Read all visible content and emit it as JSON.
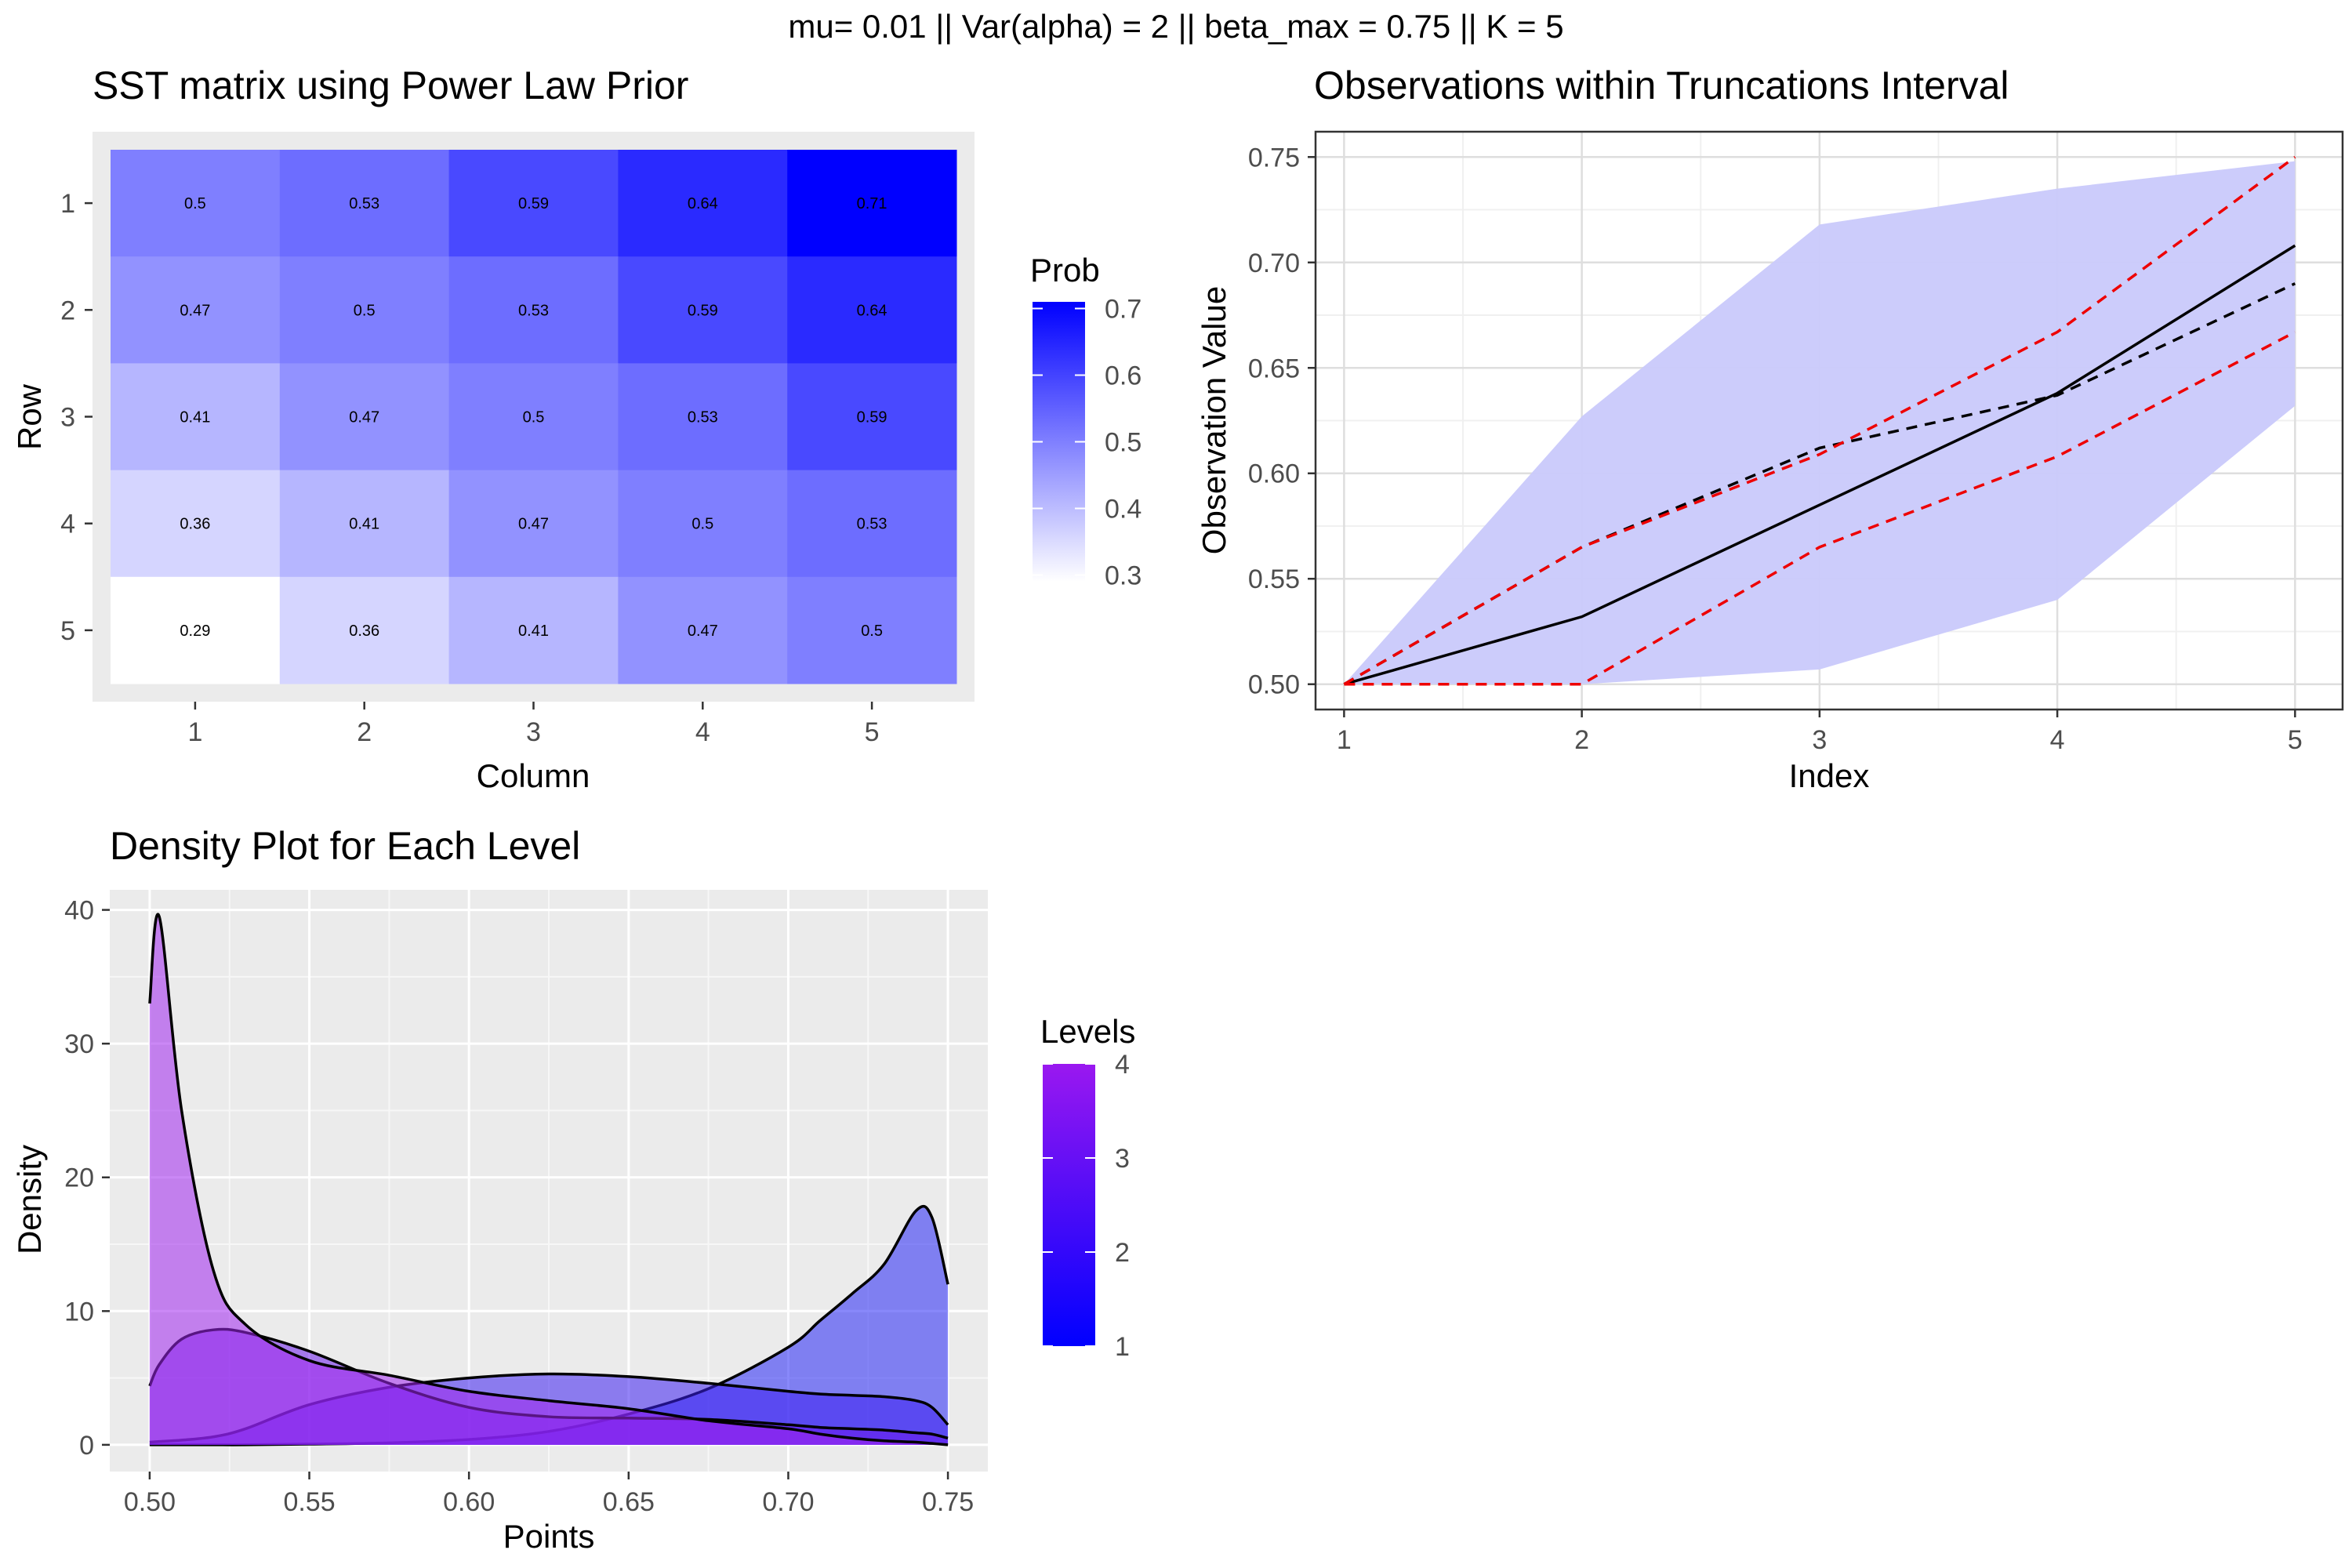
{
  "suptitle": "mu=  0.01 || Var(alpha) = 2 || beta_max = 0.75 || K = 5",
  "chart_data": [
    {
      "type": "heatmap",
      "title": "SST matrix using Power Law Prior",
      "xlabel": "Column",
      "ylabel": "Row",
      "x_ticks": [
        "1",
        "2",
        "3",
        "4",
        "5"
      ],
      "y_ticks": [
        "1",
        "2",
        "3",
        "4",
        "5"
      ],
      "matrix": [
        [
          0.5,
          0.53,
          0.59,
          0.64,
          0.71
        ],
        [
          0.47,
          0.5,
          0.53,
          0.59,
          0.64
        ],
        [
          0.41,
          0.47,
          0.5,
          0.53,
          0.59
        ],
        [
          0.36,
          0.41,
          0.47,
          0.5,
          0.53
        ],
        [
          0.29,
          0.36,
          0.41,
          0.47,
          0.5
        ]
      ],
      "legend": {
        "title": "Prob",
        "range": [
          0.29,
          0.71
        ],
        "ticks": [
          "0.3",
          "0.4",
          "0.5",
          "0.6",
          "0.7"
        ],
        "tick_values": [
          0.3,
          0.4,
          0.5,
          0.6,
          0.7
        ],
        "low_color": "#ffffff",
        "high_color": "#0000ff"
      }
    },
    {
      "type": "line",
      "title": "Observations within Truncations Interval",
      "xlabel": "Index",
      "ylabel": "Observation Value",
      "x_ticks": [
        "1",
        "2",
        "3",
        "4",
        "5"
      ],
      "y_ticks": [
        "0.50",
        "0.55",
        "0.60",
        "0.65",
        "0.70",
        "0.75"
      ],
      "xlim": [
        0.88,
        5.2
      ],
      "ylim": [
        0.488,
        0.762
      ],
      "x": [
        1,
        2,
        3,
        4,
        5
      ],
      "band": {
        "lower": [
          0.5,
          0.5,
          0.507,
          0.54,
          0.632
        ],
        "upper": [
          0.5,
          0.627,
          0.718,
          0.735,
          0.748
        ],
        "color": "#c9c9fb"
      },
      "series": [
        {
          "values": [
            0.5,
            0.532,
            0.585,
            0.638,
            0.708
          ],
          "color": "#000000",
          "dash": "solid"
        },
        {
          "values": [
            0.5,
            0.565,
            0.612,
            0.637,
            0.69
          ],
          "color": "#000000",
          "dash": "dashed"
        },
        {
          "values": [
            0.5,
            0.565,
            0.609,
            0.667,
            0.75
          ],
          "color": "#ee0000",
          "dash": "dashed"
        },
        {
          "values": [
            0.5,
            0.5,
            0.565,
            0.608,
            0.667
          ],
          "color": "#ee0000",
          "dash": "dashed"
        }
      ]
    },
    {
      "type": "area",
      "title": "Density Plot for Each Level",
      "xlabel": "Points",
      "ylabel": "Density",
      "x_ticks": [
        "0.50",
        "0.55",
        "0.60",
        "0.65",
        "0.70",
        "0.75"
      ],
      "y_ticks": [
        "0",
        "10",
        "20",
        "30",
        "40"
      ],
      "xlim": [
        0.4875,
        0.7625
      ],
      "ylim": [
        -2,
        41.5
      ],
      "x": [
        0.5,
        0.503,
        0.51,
        0.52,
        0.53,
        0.55,
        0.575,
        0.6,
        0.625,
        0.65,
        0.675,
        0.7,
        0.71,
        0.72,
        0.73,
        0.74,
        0.745,
        0.75
      ],
      "series": [
        {
          "name": "1",
          "values": [
            0,
            0,
            0,
            0,
            0,
            0.05,
            0.15,
            0.4,
            1,
            2.3,
            4.2,
            7.3,
            9.3,
            11.3,
            13.5,
            17.5,
            17,
            12
          ],
          "fill": "#2626f5"
        },
        {
          "name": "2",
          "values": [
            0.2,
            0.25,
            0.35,
            0.6,
            1.2,
            3,
            4.3,
            5,
            5.3,
            5.1,
            4.6,
            4,
            3.8,
            3.7,
            3.6,
            3.3,
            2.8,
            1.5
          ],
          "fill": "#3c1ff0"
        },
        {
          "name": "3",
          "values": [
            4.4,
            6,
            7.9,
            8.6,
            8.4,
            7,
            4.6,
            2.8,
            2.1,
            2,
            1.9,
            1.5,
            1.3,
            1.2,
            1.1,
            0.9,
            0.8,
            0.5
          ],
          "fill": "#6a19ec"
        },
        {
          "name": "4",
          "values": [
            33,
            39.5,
            25,
            13,
            9,
            6.3,
            5.2,
            4,
            3.3,
            2.7,
            1.8,
            1.2,
            0.8,
            0.5,
            0.3,
            0.2,
            0.1,
            0
          ],
          "fill": "#a126ee"
        }
      ],
      "legend": {
        "title": "Levels",
        "ticks": [
          "1",
          "2",
          "3",
          "4"
        ],
        "tick_values": [
          1,
          2,
          3,
          4
        ],
        "low_color": "#0000ff",
        "high_color": "#9a18f0"
      }
    }
  ]
}
